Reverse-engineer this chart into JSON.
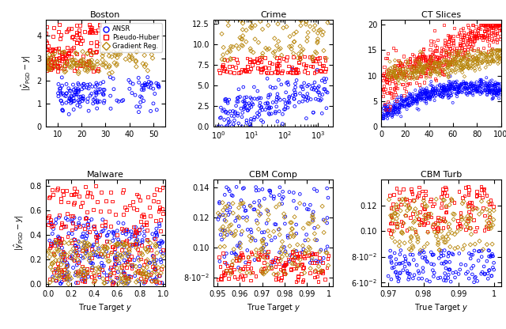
{
  "subplot_titles": [
    "Boston",
    "Crime",
    "CT Slices",
    "Malware",
    "CBM Comp",
    "CBM Turb"
  ],
  "legend_labels": [
    "ANSR",
    "Pseudo-Huber",
    "Gradient Reg."
  ],
  "colors": [
    "#0000ff",
    "#ff0000",
    "#b8860b"
  ],
  "markers": [
    "o",
    "s",
    "D"
  ],
  "figsize": [
    6.4,
    4.16
  ],
  "dpi": 100
}
